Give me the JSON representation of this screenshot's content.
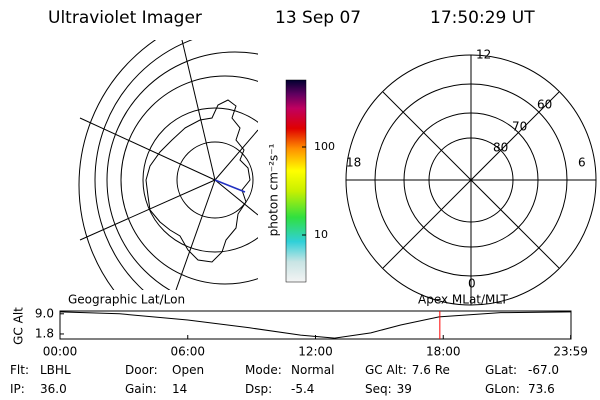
{
  "header": {
    "title": "Ultraviolet Imager",
    "date": "13 Sep 07",
    "time": "17:50:29 UT"
  },
  "left_image": {
    "label": "Geographic Lat/Lon"
  },
  "colorbar": {
    "label": "photon cm⁻²s⁻¹",
    "ticks": [
      "100",
      "10"
    ]
  },
  "right_image": {
    "label": "Apex MLat/MLT",
    "mlt_labels": [
      "12",
      "18",
      "6",
      "0"
    ],
    "mlat_labels": [
      "80",
      "70",
      "60"
    ]
  },
  "chart_data": {
    "type": "line",
    "y_label": "GC Alt",
    "x": [
      0,
      2.8,
      6,
      8.9,
      11.3,
      12.9,
      14.6,
      16,
      17.8,
      20.7,
      24
    ],
    "values": [
      9.7,
      9.0,
      6.8,
      4.0,
      1.4,
      0.3,
      2.2,
      5.0,
      7.9,
      9.4,
      9.7
    ],
    "color": "#000000",
    "xlim": [
      0,
      24
    ],
    "xticks": [
      {
        "value": 0,
        "label": "00:00"
      },
      {
        "value": 6,
        "label": "06:00"
      },
      {
        "value": 12,
        "label": "12:00"
      },
      {
        "value": 18,
        "label": "18:00"
      },
      {
        "value": 23.983,
        "label": "23:59"
      }
    ],
    "ylim": [
      0,
      10
    ],
    "yticks": [
      {
        "value": 9,
        "label": "9.0"
      },
      {
        "value": 1.8,
        "label": "1.8"
      }
    ],
    "marker": {
      "x": 17.84,
      "color": "#ff0000"
    }
  },
  "status": {
    "rows": [
      [
        {
          "label": "Flt:",
          "value": "LBHL"
        },
        {
          "label": "Door:",
          "value": "Open"
        },
        {
          "label": "Mode:",
          "value": "Normal"
        },
        {
          "label": "GC Alt:",
          "value": "7.6 Re"
        },
        {
          "label": "GLat:",
          "value": "-67.0"
        }
      ],
      [
        {
          "label": "IP:",
          "value": "36.0"
        },
        {
          "label": "Gain:",
          "value": "14"
        },
        {
          "label": "Dsp:",
          "value": "-5.4"
        },
        {
          "label": "Seq:",
          "value": "39"
        },
        {
          "label": "GLon:",
          "value": "73.6"
        }
      ]
    ]
  }
}
